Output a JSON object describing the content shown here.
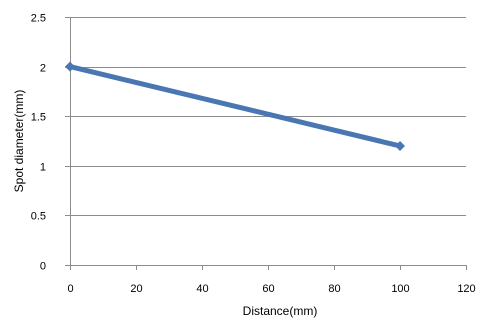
{
  "chart_data": {
    "type": "line",
    "title": "",
    "xlabel": "Distance(mm)",
    "ylabel": "Spot diameter(mm)",
    "xlim": [
      0,
      120
    ],
    "ylim": [
      0,
      2.5
    ],
    "x_ticks": [
      0,
      20,
      40,
      60,
      80,
      100,
      120
    ],
    "x_tick_labels": [
      "0",
      "20",
      "40",
      "60",
      "80",
      "100",
      "120"
    ],
    "y_ticks": [
      0,
      0.5,
      1,
      1.5,
      2,
      2.5
    ],
    "y_tick_labels": [
      "0",
      "0.5",
      "1",
      "1.5",
      "2",
      "2.5"
    ],
    "grid": "horizontal",
    "legend": "none",
    "series": [
      {
        "color": "#4a76b3",
        "marker": "diamond",
        "x": [
          0,
          100
        ],
        "y": [
          2,
          1.2
        ]
      }
    ]
  }
}
